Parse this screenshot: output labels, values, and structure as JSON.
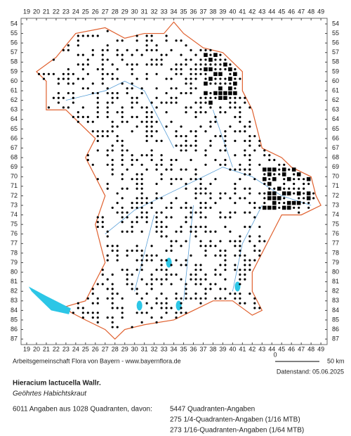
{
  "columns": [
    19,
    20,
    21,
    22,
    23,
    24,
    25,
    26,
    27,
    28,
    29,
    30,
    31,
    32,
    33,
    34,
    35,
    36,
    37,
    38,
    39,
    40,
    41,
    42,
    43,
    44,
    45,
    46,
    47,
    48,
    49
  ],
  "rows": [
    54,
    55,
    56,
    57,
    58,
    59,
    60,
    61,
    62,
    63,
    64,
    65,
    66,
    67,
    68,
    69,
    70,
    71,
    72,
    73,
    74,
    75,
    76,
    77,
    78,
    79,
    80,
    81,
    82,
    83,
    84,
    85,
    86,
    87
  ],
  "scale": {
    "start": "0",
    "end": "50 km"
  },
  "footer": {
    "credit": "Arbeitsgemeinschaft Flora von Bayern - www.bayernflora.de",
    "date": "Datenstand: 05.06.2025"
  },
  "species": {
    "name": "Hieracium lactucella Wallr.",
    "common": "Geöhrtes Habichtskraut"
  },
  "stats": {
    "summary": "6011 Angaben aus 1028 Quadranten, davon:",
    "lines": [
      "5447 Quadranten-Angaben",
      "275 1/4-Quadranten-Angaben (1/16 MTB)",
      "273 1/16-Quadranten-Angaben (1/64 MTB)"
    ]
  }
}
